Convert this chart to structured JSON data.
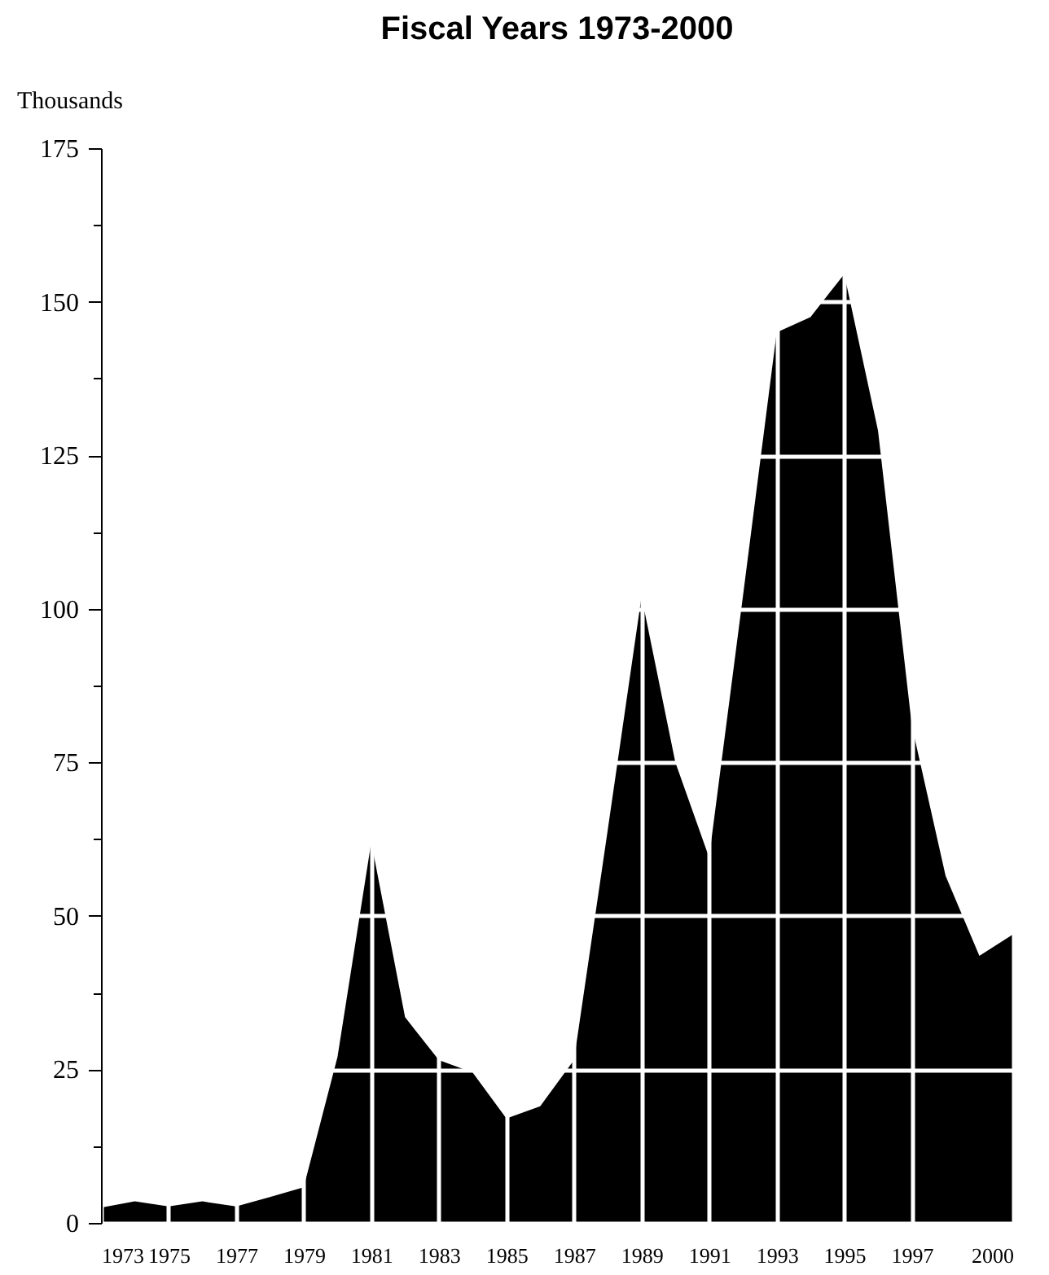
{
  "chart_data": {
    "type": "area",
    "title": "Fiscal Years 1973-2000",
    "ylabel": "Thousands",
    "x": [
      1973,
      1974,
      1975,
      1976,
      1977,
      1978,
      1979,
      1980,
      1981,
      1982,
      1983,
      1984,
      1985,
      1986,
      1987,
      1988,
      1989,
      1990,
      1991,
      1992,
      1993,
      1994,
      1995,
      1996,
      1997,
      1998,
      1999,
      2000
    ],
    "series": [
      {
        "color": "#000000",
        "values": [
          2.5,
          3.5,
          2.7,
          3.5,
          2.7,
          4.2,
          5.8,
          27,
          62,
          33.5,
          26.5,
          24.5,
          17,
          19,
          26.5,
          64,
          102,
          75,
          59.5,
          102,
          145,
          147.5,
          154.5,
          129,
          81,
          56.5,
          43.5,
          47
        ]
      }
    ],
    "xlim": [
      1973,
      2000
    ],
    "xticks": [
      1973,
      1975,
      1977,
      1979,
      1981,
      1983,
      1985,
      1987,
      1989,
      1991,
      1993,
      1995,
      1997,
      2000
    ],
    "ylim": [
      0,
      175
    ],
    "yticks": [
      0,
      {
        "value": 12.5,
        "label": null
      },
      25,
      {
        "value": 37.5,
        "label": null
      },
      50,
      {
        "value": 62.5,
        "label": null
      },
      75,
      {
        "value": 87.5,
        "label": null
      },
      100,
      {
        "value": 112.5,
        "label": null
      },
      125,
      {
        "value": 137.5,
        "label": null
      },
      150,
      {
        "value": 162.5,
        "label": null
      },
      175
    ],
    "grid": true
  }
}
